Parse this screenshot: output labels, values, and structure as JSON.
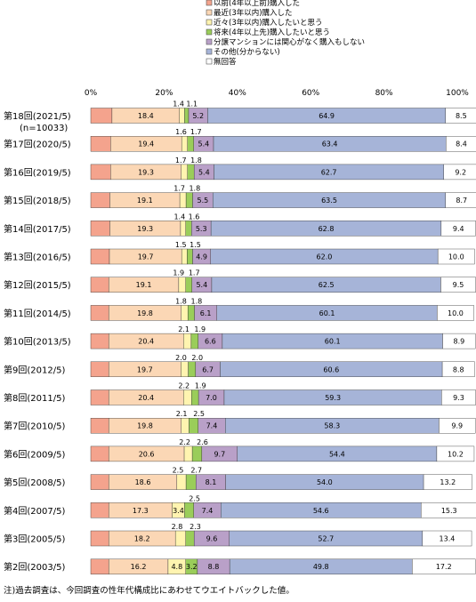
{
  "chart_data": {
    "type": "bar",
    "stacked": "100%-horizontal",
    "categories": [
      "第18回(2021/5)",
      "第17回(2020/5)",
      "第16回(2019/5)",
      "第15回(2018/5)",
      "第14回(2017/5)",
      "第13回(2016/5)",
      "第12回(2015/5)",
      "第11回(2014/5)",
      "第10回(2013/5)",
      "第9回(2012/5)",
      "第8回(2011/5)",
      "第7回(2010/5)",
      "第6回(2009/5)",
      "第5回(2008/5)",
      "第4回(2007/5)",
      "第3回(2005/5)",
      "第2回(2003/5)"
    ],
    "first_category_sublabel": "(n=10033)",
    "x_ticks": [
      "0%",
      "20%",
      "40%",
      "60%",
      "80%",
      "100%"
    ],
    "xlim": [
      0,
      100
    ],
    "legend_position": "top",
    "series": [
      {
        "name": "以前(4年以上前)購入した",
        "color": "#F4A38D",
        "values": [
          5.8,
          5.4,
          5.4,
          5.2,
          5.2,
          5.1,
          4.9,
          4.9,
          4.9,
          4.9,
          4.9,
          4.9,
          4.9,
          4.9,
          4.9,
          4.9,
          4.9
        ]
      },
      {
        "name": "最近(3年以内)購入した",
        "color": "#FBD7B5",
        "values": [
          18.4,
          19.4,
          19.3,
          19.1,
          19.3,
          19.7,
          19.1,
          19.8,
          20.4,
          19.7,
          20.4,
          19.8,
          20.6,
          18.6,
          17.3,
          18.2,
          16.2
        ]
      },
      {
        "name": "近々(3年以内)購入したいと思う",
        "color": "#FFF4B0",
        "values": [
          1.4,
          1.6,
          1.7,
          1.7,
          1.4,
          1.5,
          1.9,
          1.8,
          2.1,
          2.0,
          2.2,
          2.1,
          2.2,
          2.5,
          3.4,
          2.8,
          4.8
        ]
      },
      {
        "name": "将来(4年以上先)購入したいと思う",
        "color": "#9ACD5A",
        "values": [
          1.1,
          1.7,
          1.8,
          1.8,
          1.6,
          1.5,
          1.7,
          1.8,
          1.9,
          2.0,
          1.9,
          2.5,
          2.6,
          2.7,
          2.5,
          2.3,
          3.2
        ]
      },
      {
        "name": "分譲マンションには関心がなく購入もしない",
        "color": "#B9A0C8",
        "values": [
          5.2,
          5.4,
          5.4,
          5.5,
          5.3,
          4.9,
          5.4,
          6.1,
          6.6,
          6.7,
          7.0,
          7.4,
          9.7,
          8.1,
          7.4,
          9.6,
          8.8
        ]
      },
      {
        "name": "その他(分からない)",
        "color": "#A6B4D8",
        "values": [
          64.9,
          63.4,
          62.7,
          63.5,
          62.8,
          62.0,
          62.5,
          60.1,
          60.1,
          60.6,
          59.3,
          58.3,
          54.4,
          54.0,
          54.6,
          52.7,
          49.8
        ]
      },
      {
        "name": "無回答",
        "color": "#FFFFFF",
        "values": [
          8.5,
          8.4,
          9.2,
          8.7,
          9.4,
          10.0,
          9.5,
          10.0,
          8.9,
          8.8,
          9.3,
          9.9,
          10.2,
          13.2,
          15.3,
          13.4,
          17.2
        ]
      }
    ],
    "value_labels_shown_for": [
      1,
      2,
      3,
      4,
      5,
      6
    ]
  },
  "note": "注)過去調査は、今回調査の性年代構成比にあわせてウエイトバックした値。"
}
